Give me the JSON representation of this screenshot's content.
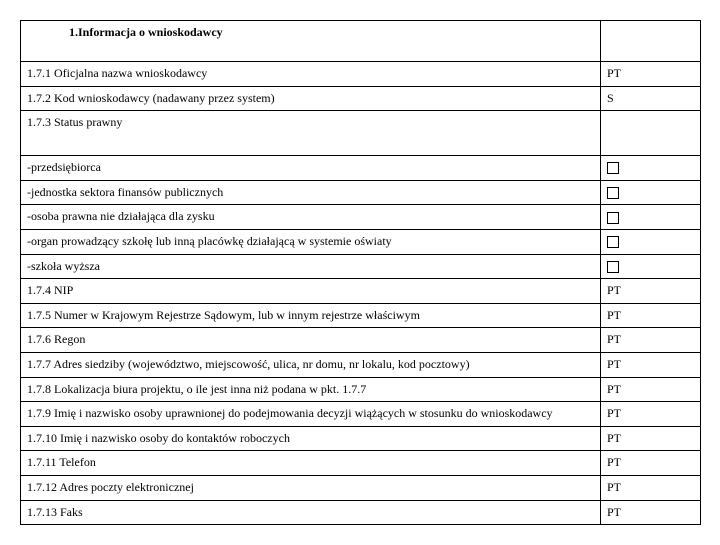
{
  "header": "1.Informacja o wnioskodawcy",
  "rows": [
    {
      "label": "1.7.1 Oficjalna nazwa wnioskodawcy",
      "value": "PT",
      "type": "text"
    },
    {
      "label": "1.7.2 Kod wnioskodawcy (nadawany przez system)",
      "value": "S",
      "type": "text"
    },
    {
      "label": "1.7.3 Status prawny",
      "value": "",
      "type": "text",
      "tall": true
    },
    {
      "label": "-przedsiębiorca",
      "value": "",
      "type": "checkbox"
    },
    {
      "label": "-jednostka sektora finansów publicznych",
      "value": "",
      "type": "checkbox"
    },
    {
      "label": "-osoba prawna nie działająca dla zysku",
      "value": "",
      "type": "checkbox"
    },
    {
      "label": "-organ prowadzący szkołę lub inną placówkę działającą w systemie oświaty",
      "value": "",
      "type": "checkbox"
    },
    {
      "label": "-szkoła wyższa",
      "value": "",
      "type": "checkbox"
    },
    {
      "label": "1.7.4 NIP",
      "value": "PT",
      "type": "text"
    },
    {
      "label": "1.7.5 Numer w Krajowym Rejestrze Sądowym, lub w innym rejestrze właściwym",
      "value": "PT",
      "type": "text"
    },
    {
      "label": "1.7.6 Regon",
      "value": "PT",
      "type": "text"
    },
    {
      "label": "1.7.7 Adres siedziby (województwo, miejscowość, ulica, nr domu, nr lokalu, kod pocztowy)",
      "value": "PT",
      "type": "text"
    },
    {
      "label": "1.7.8 Lokalizacja biura projektu, o ile jest inna niż podana w pkt. 1.7.7",
      "value": "PT",
      "type": "text"
    },
    {
      "label": "1.7.9 Imię i nazwisko osoby uprawnionej do podejmowania decyzji wiążących w stosunku do wnioskodawcy",
      "value": "PT",
      "type": "text"
    },
    {
      "label": "1.7.10 Imię i nazwisko osoby do kontaktów roboczych",
      "value": "PT",
      "type": "text"
    },
    {
      "label": "1.7.11 Telefon",
      "value": "PT",
      "type": "text"
    },
    {
      "label": "1.7.12 Adres poczty elektronicznej",
      "value": "PT",
      "type": "text"
    },
    {
      "label": "1.7.13 Faks",
      "value": "PT",
      "type": "text"
    }
  ]
}
